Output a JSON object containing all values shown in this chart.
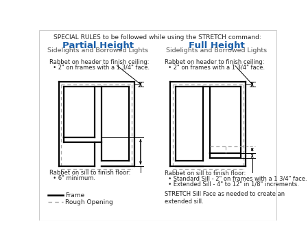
{
  "bg_color": "#ffffff",
  "frame_color": "#000000",
  "dashed_color": "#aaaaaa",
  "blue_color": "#1a5ea8",
  "text_color": "#222222",
  "title": "SPECIAL RULES to be followed while using the STRETCH command:",
  "left_title": "Partial Height",
  "left_subtitle": "Sidelights and Borrowed Lights",
  "right_title": "Full Height",
  "right_subtitle": "Sidelights and Borrowed Lights",
  "left_header_note1": "Rabbet on header to finish ceiling:",
  "left_header_note2": "  • 2\" on frames with a 1 3/4\" face.",
  "right_header_note1": "Rabbet on header to finish ceiling:",
  "right_header_note2": "  • 2\" on frames with a 1 3/4\" face.",
  "left_sill_note1": "Rabbet on sill to finish floor:",
  "left_sill_note2": "  • 6\" minimum.",
  "right_sill_note1": "Rabbet on sill to finish floor:",
  "right_sill_bullet1": "  • Standard Sill - 2\" on frames with a 1 3/4\" face.",
  "right_sill_bullet2": "  • Extended Sill - 4\" to 12\" in 1/8\" increments.",
  "right_stretch_note": "STRETCH Sill Face as needed to create an\nextended sill.",
  "legend_frame": "Frame",
  "legend_rough": "Rough Opening",
  "border_color": "#cccccc"
}
